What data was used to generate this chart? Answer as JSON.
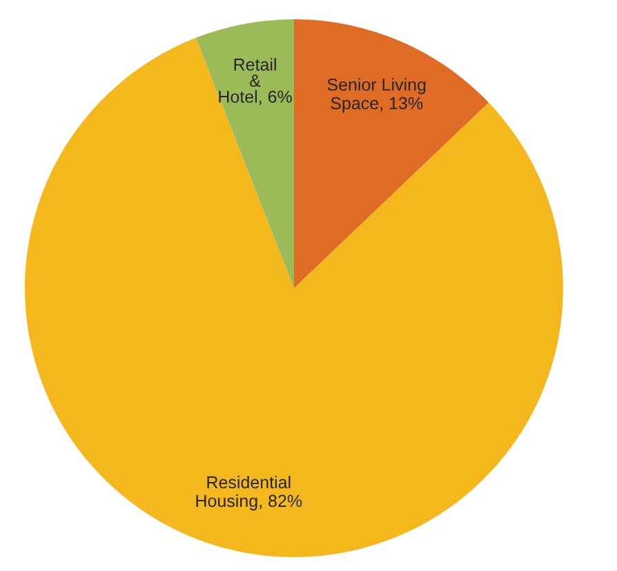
{
  "chart_data": {
    "type": "pie",
    "categories": [
      "Senior Living\nSpace",
      "Residential\nHousing",
      "Retail\n&\nHotel"
    ],
    "values": [
      13,
      82,
      6
    ],
    "value_labels": [
      "13%",
      "82%",
      "6%"
    ],
    "colors": [
      "#e06b25",
      "#f5b81c",
      "#9bbb59"
    ]
  }
}
